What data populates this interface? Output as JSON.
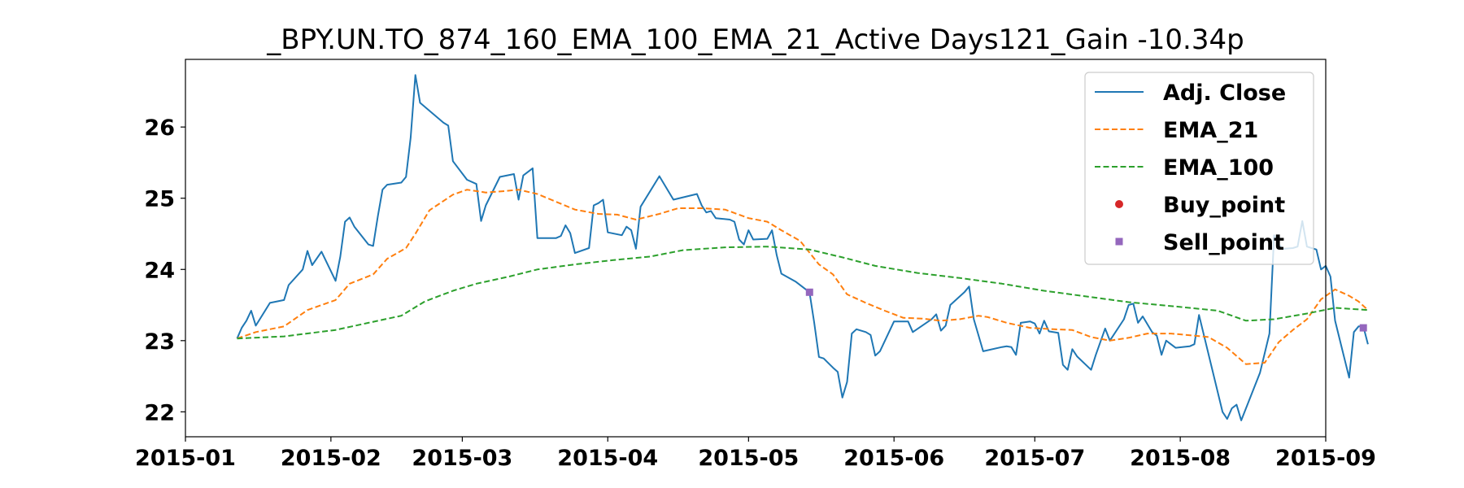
{
  "chart_data": {
    "type": "line",
    "title": "_BPY.UN.TO_874_160_EMA_100_EMA_21_Active Days121_Gain -10.34p",
    "xlabel": "",
    "ylabel": "",
    "x_range": [
      "2015-01-01",
      "2015-09-01"
    ],
    "ylim": [
      21.65,
      26.95
    ],
    "x_ticks": [
      "2015-01-01",
      "2015-02-01",
      "2015-03-01",
      "2015-04-01",
      "2015-05-01",
      "2015-06-01",
      "2015-07-01",
      "2015-08-01",
      "2015-09-01"
    ],
    "x_tick_labels": [
      "2015-01",
      "2015-02",
      "2015-03",
      "2015-04",
      "2015-05",
      "2015-06",
      "2015-07",
      "2015-08",
      "2015-09"
    ],
    "y_ticks": [
      22,
      23,
      24,
      25,
      26
    ],
    "y_tick_labels": [
      "22",
      "23",
      "24",
      "25",
      "26"
    ],
    "grid": false,
    "legend_position": "top-right",
    "series": [
      {
        "name": "Adj. Close",
        "color": "#1f77b4",
        "style": "solid",
        "points": [
          [
            "2015-01-12",
            23.03
          ],
          [
            "2015-01-13",
            23.18
          ],
          [
            "2015-01-14",
            23.28
          ],
          [
            "2015-01-15",
            23.42
          ],
          [
            "2015-01-16",
            23.21
          ],
          [
            "2015-01-19",
            23.53
          ],
          [
            "2015-01-22",
            23.57
          ],
          [
            "2015-01-23",
            23.78
          ],
          [
            "2015-01-26",
            24.0
          ],
          [
            "2015-01-27",
            24.26
          ],
          [
            "2015-01-28",
            24.06
          ],
          [
            "2015-01-30",
            24.25
          ],
          [
            "2015-02-02",
            23.84
          ],
          [
            "2015-02-03",
            24.18
          ],
          [
            "2015-02-04",
            24.67
          ],
          [
            "2015-02-05",
            24.73
          ],
          [
            "2015-02-06",
            24.6
          ],
          [
            "2015-02-09",
            24.35
          ],
          [
            "2015-02-10",
            24.33
          ],
          [
            "2015-02-11",
            24.75
          ],
          [
            "2015-02-12",
            25.12
          ],
          [
            "2015-02-13",
            25.19
          ],
          [
            "2015-02-16",
            25.22
          ],
          [
            "2015-02-17",
            25.3
          ],
          [
            "2015-02-18",
            25.85
          ],
          [
            "2015-02-19",
            26.73
          ],
          [
            "2015-02-20",
            26.34
          ],
          [
            "2015-02-25",
            26.06
          ],
          [
            "2015-02-26",
            26.02
          ],
          [
            "2015-02-27",
            25.52
          ],
          [
            "2015-03-02",
            25.26
          ],
          [
            "2015-03-04",
            25.2
          ],
          [
            "2015-03-05",
            24.68
          ],
          [
            "2015-03-06",
            24.9
          ],
          [
            "2015-03-09",
            25.3
          ],
          [
            "2015-03-12",
            25.34
          ],
          [
            "2015-03-13",
            24.98
          ],
          [
            "2015-03-14",
            25.32
          ],
          [
            "2015-03-16",
            25.42
          ],
          [
            "2015-03-17",
            24.44
          ],
          [
            "2015-03-21",
            24.44
          ],
          [
            "2015-03-22",
            24.47
          ],
          [
            "2015-03-23",
            24.62
          ],
          [
            "2015-03-24",
            24.51
          ],
          [
            "2015-03-25",
            24.23
          ],
          [
            "2015-03-28",
            24.3
          ],
          [
            "2015-03-29",
            24.9
          ],
          [
            "2015-03-30",
            24.93
          ],
          [
            "2015-03-31",
            24.98
          ],
          [
            "2015-04-01",
            24.52
          ],
          [
            "2015-04-04",
            24.48
          ],
          [
            "2015-04-05",
            24.6
          ],
          [
            "2015-04-06",
            24.55
          ],
          [
            "2015-04-07",
            24.29
          ],
          [
            "2015-04-08",
            24.88
          ],
          [
            "2015-04-12",
            25.31
          ],
          [
            "2015-04-15",
            24.98
          ],
          [
            "2015-04-20",
            25.06
          ],
          [
            "2015-04-21",
            24.9
          ],
          [
            "2015-04-22",
            24.8
          ],
          [
            "2015-04-23",
            24.82
          ],
          [
            "2015-04-24",
            24.72
          ],
          [
            "2015-04-27",
            24.7
          ],
          [
            "2015-04-28",
            24.67
          ],
          [
            "2015-04-29",
            24.42
          ],
          [
            "2015-04-30",
            24.35
          ],
          [
            "2015-05-01",
            24.55
          ],
          [
            "2015-05-02",
            24.42
          ],
          [
            "2015-05-05",
            24.43
          ],
          [
            "2015-05-06",
            24.55
          ],
          [
            "2015-05-07",
            24.2
          ],
          [
            "2015-05-08",
            23.94
          ],
          [
            "2015-05-11",
            23.83
          ],
          [
            "2015-05-14",
            23.68
          ],
          [
            "2015-05-15",
            23.25
          ],
          [
            "2015-05-16",
            22.77
          ],
          [
            "2015-05-17",
            22.75
          ],
          [
            "2015-05-19",
            22.62
          ],
          [
            "2015-05-20",
            22.56
          ],
          [
            "2015-05-21",
            22.2
          ],
          [
            "2015-05-22",
            22.42
          ],
          [
            "2015-05-23",
            23.1
          ],
          [
            "2015-05-24",
            23.16
          ],
          [
            "2015-05-26",
            23.12
          ],
          [
            "2015-05-27",
            23.08
          ],
          [
            "2015-05-28",
            22.79
          ],
          [
            "2015-05-29",
            22.85
          ],
          [
            "2015-06-01",
            23.27
          ],
          [
            "2015-06-02",
            23.27
          ],
          [
            "2015-06-04",
            23.27
          ],
          [
            "2015-06-05",
            23.12
          ],
          [
            "2015-06-09",
            23.3
          ],
          [
            "2015-06-10",
            23.37
          ],
          [
            "2015-06-11",
            23.14
          ],
          [
            "2015-06-12",
            23.21
          ],
          [
            "2015-06-13",
            23.5
          ],
          [
            "2015-06-16",
            23.68
          ],
          [
            "2015-06-17",
            23.76
          ],
          [
            "2015-06-18",
            23.3
          ],
          [
            "2015-06-20",
            22.85
          ],
          [
            "2015-06-24",
            22.91
          ],
          [
            "2015-06-25",
            22.92
          ],
          [
            "2015-06-26",
            22.91
          ],
          [
            "2015-06-27",
            22.8
          ],
          [
            "2015-06-28",
            23.25
          ],
          [
            "2015-06-30",
            23.27
          ],
          [
            "2015-07-01",
            23.24
          ],
          [
            "2015-07-02",
            23.1
          ],
          [
            "2015-07-03",
            23.28
          ],
          [
            "2015-07-04",
            23.13
          ],
          [
            "2015-07-06",
            23.11
          ],
          [
            "2015-07-07",
            22.66
          ],
          [
            "2015-07-08",
            22.59
          ],
          [
            "2015-07-09",
            22.88
          ],
          [
            "2015-07-10",
            22.78
          ],
          [
            "2015-07-13",
            22.59
          ],
          [
            "2015-07-14",
            22.8
          ],
          [
            "2015-07-16",
            23.17
          ],
          [
            "2015-07-17",
            23.0
          ],
          [
            "2015-07-20",
            23.3
          ],
          [
            "2015-07-21",
            23.5
          ],
          [
            "2015-07-22",
            23.52
          ],
          [
            "2015-07-23",
            23.25
          ],
          [
            "2015-07-24",
            23.34
          ],
          [
            "2015-07-26",
            23.12
          ],
          [
            "2015-07-27",
            23.07
          ],
          [
            "2015-07-28",
            22.8
          ],
          [
            "2015-07-29",
            23.0
          ],
          [
            "2015-07-31",
            22.9
          ],
          [
            "2015-08-03",
            22.92
          ],
          [
            "2015-08-04",
            22.95
          ],
          [
            "2015-08-05",
            23.36
          ],
          [
            "2015-08-10",
            22.0
          ],
          [
            "2015-08-11",
            21.9
          ],
          [
            "2015-08-12",
            22.05
          ],
          [
            "2015-08-13",
            22.1
          ],
          [
            "2015-08-14",
            21.88
          ],
          [
            "2015-08-18",
            22.55
          ],
          [
            "2015-08-20",
            23.1
          ],
          [
            "2015-08-21",
            24.48
          ],
          [
            "2015-08-22",
            24.35
          ],
          [
            "2015-08-23",
            24.29
          ],
          [
            "2015-08-25",
            24.3
          ],
          [
            "2015-08-26",
            24.32
          ],
          [
            "2015-08-27",
            24.68
          ],
          [
            "2015-08-28",
            24.32
          ],
          [
            "2015-08-29",
            24.3
          ],
          [
            "2015-08-30",
            24.28
          ],
          [
            "2015-08-31",
            24.0
          ],
          [
            "2015-09-01",
            24.05
          ],
          [
            "2015-09-02",
            23.9
          ],
          [
            "2015-09-03",
            23.28
          ],
          [
            "2015-09-06",
            22.48
          ],
          [
            "2015-09-07",
            23.12
          ],
          [
            "2015-09-08",
            23.2
          ],
          [
            "2015-09-09",
            23.2
          ],
          [
            "2015-09-10",
            22.95
          ]
        ]
      },
      {
        "name": "EMA_21",
        "color": "#ff7f0e",
        "style": "dashed",
        "points": [
          [
            "2015-01-12",
            23.03
          ],
          [
            "2015-01-16",
            23.12
          ],
          [
            "2015-01-22",
            23.2
          ],
          [
            "2015-01-27",
            23.43
          ],
          [
            "2015-02-02",
            23.57
          ],
          [
            "2015-02-05",
            23.8
          ],
          [
            "2015-02-10",
            23.93
          ],
          [
            "2015-02-13",
            24.15
          ],
          [
            "2015-02-17",
            24.3
          ],
          [
            "2015-02-19",
            24.5
          ],
          [
            "2015-02-22",
            24.83
          ],
          [
            "2015-02-27",
            25.05
          ],
          [
            "2015-03-02",
            25.12
          ],
          [
            "2015-03-06",
            25.08
          ],
          [
            "2015-03-10",
            25.1
          ],
          [
            "2015-03-13",
            25.12
          ],
          [
            "2015-03-17",
            25.06
          ],
          [
            "2015-03-21",
            24.95
          ],
          [
            "2015-03-25",
            24.84
          ],
          [
            "2015-03-30",
            24.78
          ],
          [
            "2015-04-03",
            24.77
          ],
          [
            "2015-04-07",
            24.7
          ],
          [
            "2015-04-12",
            24.78
          ],
          [
            "2015-04-16",
            24.86
          ],
          [
            "2015-04-21",
            24.86
          ],
          [
            "2015-04-26",
            24.84
          ],
          [
            "2015-05-01",
            24.72
          ],
          [
            "2015-05-05",
            24.67
          ],
          [
            "2015-05-08",
            24.55
          ],
          [
            "2015-05-12",
            24.4
          ],
          [
            "2015-05-16",
            24.07
          ],
          [
            "2015-05-19",
            23.93
          ],
          [
            "2015-05-22",
            23.65
          ],
          [
            "2015-05-26",
            23.53
          ],
          [
            "2015-05-30",
            23.42
          ],
          [
            "2015-06-03",
            23.32
          ],
          [
            "2015-06-07",
            23.31
          ],
          [
            "2015-06-11",
            23.28
          ],
          [
            "2015-06-15",
            23.3
          ],
          [
            "2015-06-19",
            23.35
          ],
          [
            "2015-06-21",
            23.33
          ],
          [
            "2015-06-25",
            23.25
          ],
          [
            "2015-06-30",
            23.18
          ],
          [
            "2015-07-05",
            23.16
          ],
          [
            "2015-07-09",
            23.15
          ],
          [
            "2015-07-13",
            23.05
          ],
          [
            "2015-07-17",
            23.0
          ],
          [
            "2015-07-21",
            23.04
          ],
          [
            "2015-07-25",
            23.1
          ],
          [
            "2015-07-30",
            23.1
          ],
          [
            "2015-08-04",
            23.07
          ],
          [
            "2015-08-07",
            23.05
          ],
          [
            "2015-08-11",
            22.9
          ],
          [
            "2015-08-15",
            22.67
          ],
          [
            "2015-08-19",
            22.69
          ],
          [
            "2015-08-22",
            22.98
          ],
          [
            "2015-08-25",
            23.15
          ],
          [
            "2015-08-28",
            23.3
          ],
          [
            "2015-08-31",
            23.58
          ],
          [
            "2015-09-03",
            23.72
          ],
          [
            "2015-09-06",
            23.63
          ],
          [
            "2015-09-08",
            23.55
          ],
          [
            "2015-09-10",
            23.43
          ]
        ]
      },
      {
        "name": "EMA_100",
        "color": "#2ca02c",
        "style": "dashed",
        "points": [
          [
            "2015-01-12",
            23.03
          ],
          [
            "2015-01-22",
            23.06
          ],
          [
            "2015-02-02",
            23.15
          ],
          [
            "2015-02-09",
            23.25
          ],
          [
            "2015-02-16",
            23.35
          ],
          [
            "2015-02-21",
            23.55
          ],
          [
            "2015-02-27",
            23.7
          ],
          [
            "2015-03-04",
            23.8
          ],
          [
            "2015-03-11",
            23.9
          ],
          [
            "2015-03-17",
            24.0
          ],
          [
            "2015-03-25",
            24.07
          ],
          [
            "2015-04-02",
            24.13
          ],
          [
            "2015-04-10",
            24.18
          ],
          [
            "2015-04-17",
            24.27
          ],
          [
            "2015-04-26",
            24.31
          ],
          [
            "2015-05-05",
            24.32
          ],
          [
            "2015-05-14",
            24.28
          ],
          [
            "2015-05-21",
            24.17
          ],
          [
            "2015-05-28",
            24.05
          ],
          [
            "2015-06-06",
            23.95
          ],
          [
            "2015-06-15",
            23.88
          ],
          [
            "2015-06-24",
            23.8
          ],
          [
            "2015-07-03",
            23.7
          ],
          [
            "2015-07-12",
            23.62
          ],
          [
            "2015-07-21",
            23.54
          ],
          [
            "2015-07-31",
            23.48
          ],
          [
            "2015-08-09",
            23.42
          ],
          [
            "2015-08-15",
            23.28
          ],
          [
            "2015-08-21",
            23.3
          ],
          [
            "2015-08-28",
            23.38
          ],
          [
            "2015-09-03",
            23.46
          ],
          [
            "2015-09-10",
            23.43
          ]
        ]
      }
    ],
    "markers": [
      {
        "name": "Buy_point",
        "color": "#d62728",
        "shape": "circle",
        "points": []
      },
      {
        "name": "Sell_point",
        "color": "#9467bd",
        "shape": "square",
        "points": [
          [
            "2015-05-14",
            23.68
          ],
          [
            "2015-09-09",
            23.18
          ]
        ]
      }
    ],
    "legend": [
      {
        "label": "Adj. Close",
        "color": "#1f77b4",
        "kind": "solid"
      },
      {
        "label": "EMA_21",
        "color": "#ff7f0e",
        "kind": "dashed"
      },
      {
        "label": "EMA_100",
        "color": "#2ca02c",
        "kind": "dashed"
      },
      {
        "label": "Buy_point",
        "color": "#d62728",
        "kind": "circle"
      },
      {
        "label": "Sell_point",
        "color": "#9467bd",
        "kind": "square"
      }
    ]
  }
}
